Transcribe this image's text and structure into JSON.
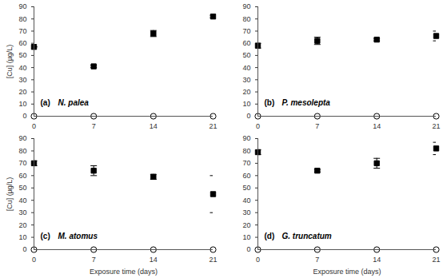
{
  "chart_data": [
    {
      "type": "scatter",
      "title": "(a) N. palea",
      "ylabel": "[Cu] (µg/L)",
      "x": [
        0,
        7,
        14,
        21
      ],
      "xlim": [
        0,
        21
      ],
      "xticks": [
        0,
        7,
        14,
        21
      ],
      "ylim": [
        0,
        90
      ],
      "yticks": [
        0,
        10,
        20,
        30,
        40,
        50,
        60,
        70,
        80,
        90
      ],
      "series": [
        {
          "marker": "square",
          "color": "#000000",
          "values": [
            57,
            41,
            68,
            82
          ],
          "errors": [
            0,
            1,
            2.5,
            1
          ]
        },
        {
          "marker": "open_circle",
          "color": "#000000",
          "values": [
            0,
            0,
            0,
            0
          ]
        }
      ]
    },
    {
      "type": "scatter",
      "title": "(b) P. mesolepta",
      "x": [
        0,
        7,
        14,
        21
      ],
      "xlim": [
        0,
        21
      ],
      "xticks": [
        0,
        7,
        14,
        21
      ],
      "ylim": [
        0,
        90
      ],
      "yticks": [
        0,
        10,
        20,
        30,
        40,
        50,
        60,
        70,
        80,
        90
      ],
      "series": [
        {
          "marker": "square",
          "color": "#000000",
          "values": [
            58,
            62,
            63,
            66
          ],
          "errors": [
            2,
            3,
            1,
            4
          ]
        },
        {
          "marker": "open_circle",
          "color": "#000000",
          "values": [
            0,
            0,
            0,
            0
          ]
        }
      ]
    },
    {
      "type": "scatter",
      "title": "(c) M. atomus",
      "ylabel": "[Cu] (µg/L)",
      "xlabel": "Exposure time (days)",
      "x": [
        0,
        7,
        14,
        21
      ],
      "xlim": [
        0,
        21
      ],
      "xticks": [
        0,
        7,
        14,
        21
      ],
      "ylim": [
        0,
        90
      ],
      "yticks": [
        0,
        10,
        20,
        30,
        40,
        50,
        60,
        70,
        80,
        90
      ],
      "series": [
        {
          "marker": "square",
          "color": "#000000",
          "values": [
            70,
            64,
            59,
            45
          ],
          "errors": [
            2,
            4,
            2,
            15
          ]
        },
        {
          "marker": "open_circle",
          "color": "#000000",
          "values": [
            0,
            0,
            0,
            0
          ]
        }
      ]
    },
    {
      "type": "scatter",
      "title": "(d) G. truncatum",
      "xlabel": "Exposure time (days)",
      "x": [
        0,
        7,
        14,
        21
      ],
      "xlim": [
        0,
        21
      ],
      "xticks": [
        0,
        7,
        14,
        21
      ],
      "ylim": [
        0,
        90
      ],
      "yticks": [
        0,
        10,
        20,
        30,
        40,
        50,
        60,
        70,
        80,
        90
      ],
      "series": [
        {
          "marker": "square",
          "color": "#000000",
          "values": [
            79,
            64,
            70,
            82
          ],
          "errors": [
            2,
            1,
            4,
            5
          ]
        },
        {
          "marker": "open_circle",
          "color": "#000000",
          "values": [
            0,
            0,
            0,
            0
          ]
        }
      ]
    }
  ]
}
